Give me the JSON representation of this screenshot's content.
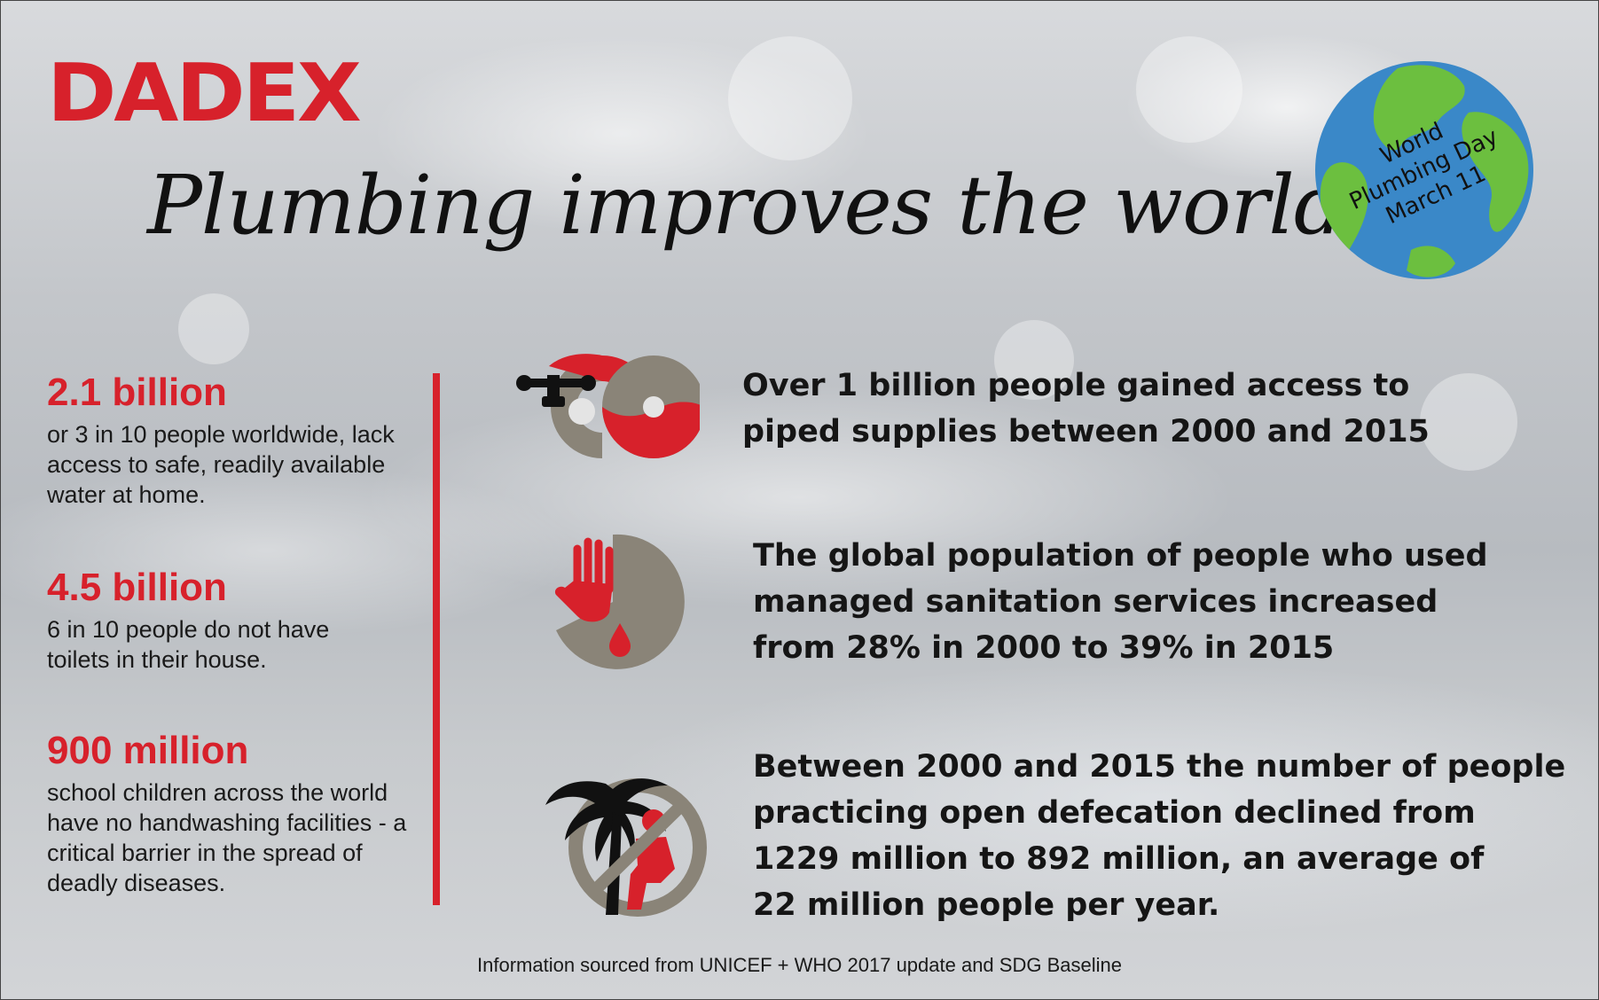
{
  "brand": {
    "logo_text": "DADEX",
    "color": "#d7212b"
  },
  "title": "Plumbing improves the world",
  "badge": {
    "line1": "World",
    "line2": "Plumbing Day",
    "line3": "March 11"
  },
  "stats": [
    {
      "number": "2.1 billion",
      "description": "or 3 in 10 people worldwide, lack access to safe, readily available water at home."
    },
    {
      "number": "4.5 billion",
      "description": "6 in 10 people do not have toilets in their house."
    },
    {
      "number": "900 million",
      "description": "school children across the world have no handwashing facilities - a critical barrier in the spread of deadly diseases."
    }
  ],
  "facts": [
    {
      "icon": "faucet-pipe-icon",
      "text": "Over 1 billion people gained access to\npiped supplies between 2000 and 2015"
    },
    {
      "icon": "hand-drop-icon",
      "text": "The global population of people who used\nmanaged sanitation services increased\nfrom 28% in 2000 to 39% in 2015"
    },
    {
      "icon": "no-open-defecation-icon",
      "text": "Between 2000 and 2015 the number of people\npracticing open defecation declined from\n1229 million to 892 million, an average of\n22 million people per year."
    }
  ],
  "source": "Information sourced from UNICEF + WHO 2017 update and SDG Baseline",
  "colors": {
    "accent_red": "#d7212b",
    "icon_grey": "#8a8478",
    "globe_blue": "#3a88c8",
    "globe_green": "#6cbf3f"
  }
}
